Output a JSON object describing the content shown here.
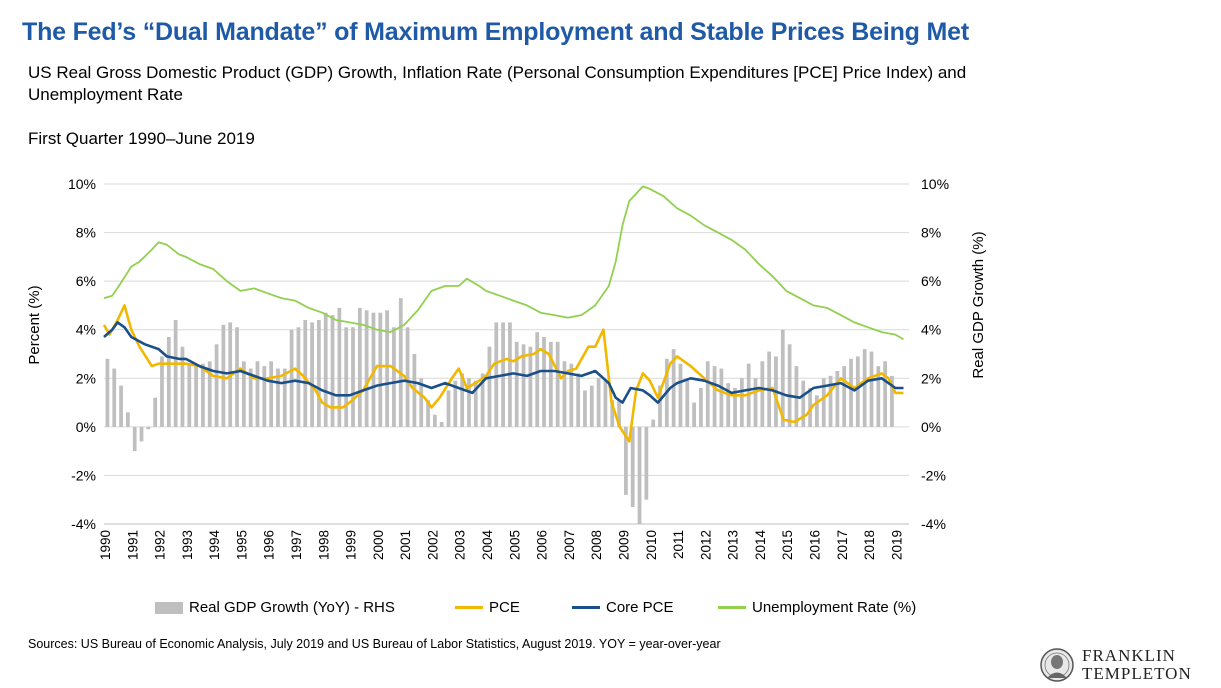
{
  "header": {
    "title": "The Fed’s “Dual Mandate” of Maximum Employment and Stable Prices Being Met",
    "subtitle": "US Real Gross Domestic Product (GDP) Growth, Inflation Rate (Personal Consumption Expenditures [PCE] Price Index) and Unemployment Rate",
    "period": "First Quarter 1990–June 2019"
  },
  "footer": {
    "source": "Sources: US Bureau of Economic Analysis, July 2019 and US Bureau of Labor Statistics, August 2019. YOY = year-over-year",
    "logo_line1": "FRANKLIN",
    "logo_line2": "TEMPLETON"
  },
  "chart_data": {
    "type": "bar",
    "ylabel": "Percent (%)",
    "ylabel_right": "Real GDP Growth (%)",
    "ylim": [
      -4,
      10
    ],
    "yticks": [
      "-4%",
      "-2%",
      "0%",
      "2%",
      "4%",
      "6%",
      "8%",
      "10%"
    ],
    "x_tick_labels": [
      "1990",
      "1991",
      "1992",
      "1993",
      "1994",
      "1995",
      "1996",
      "1997",
      "1998",
      "1999",
      "2000",
      "2001",
      "2002",
      "2003",
      "2004",
      "2005",
      "2006",
      "2007",
      "2008",
      "2009",
      "2010",
      "2011",
      "2012",
      "2013",
      "2014",
      "2015",
      "2016",
      "2017",
      "2018",
      "2019"
    ],
    "x_start": 1990.0,
    "x_end": 2019.5,
    "grid": true,
    "legend_position": "bottom",
    "colors": {
      "gdp": "#bfbfbf",
      "pce": "#f2b800",
      "core_pce": "#1b4f8a",
      "unemployment": "#92d050",
      "title": "#1f5aa6"
    },
    "series": [
      {
        "name": "Real GDP Growth (YoY) - RHS",
        "type": "bar",
        "axis": "right",
        "x_start": 1990.0,
        "step": 0.25,
        "values": [
          2.8,
          2.4,
          1.7,
          0.6,
          -1.0,
          -0.6,
          -0.1,
          1.2,
          2.9,
          3.7,
          4.4,
          3.3,
          2.6,
          2.6,
          2.6,
          2.7,
          3.4,
          4.2,
          4.3,
          4.1,
          2.7,
          2.4,
          2.7,
          2.5,
          2.7,
          2.4,
          2.4,
          4.0,
          4.1,
          4.4,
          4.3,
          4.4,
          4.7,
          4.6,
          4.9,
          4.1,
          4.1,
          4.9,
          4.8,
          4.7,
          4.7,
          4.8,
          4.1,
          5.3,
          4.1,
          3.0,
          2.0,
          1.1,
          0.5,
          0.2,
          1.5,
          1.9,
          2.2,
          2.0,
          1.9,
          2.2,
          3.3,
          4.3,
          4.3,
          4.3,
          3.5,
          3.4,
          3.3,
          3.9,
          3.7,
          3.5,
          3.5,
          2.7,
          2.6,
          2.2,
          1.5,
          1.7,
          2.0,
          1.9,
          1.1,
          1.1,
          -2.8,
          -3.3,
          -4.0,
          -3.0,
          0.3,
          1.7,
          2.8,
          3.2,
          2.6,
          1.9,
          1.0,
          1.6,
          2.7,
          2.5,
          2.4,
          1.8,
          1.6,
          2.0,
          2.6,
          2.0,
          2.7,
          3.1,
          2.9,
          4.0,
          3.4,
          2.5,
          1.9,
          1.6,
          1.3,
          2.0,
          2.1,
          2.3,
          2.5,
          2.8,
          2.9,
          3.2,
          3.1,
          2.5,
          2.7,
          2.1
        ]
      },
      {
        "name": "PCE",
        "type": "line",
        "axis": "left",
        "points": [
          [
            1990.0,
            4.2
          ],
          [
            1990.2,
            3.8
          ],
          [
            1990.5,
            4.4
          ],
          [
            1990.75,
            5.0
          ],
          [
            1991.0,
            4.0
          ],
          [
            1991.3,
            3.3
          ],
          [
            1991.75,
            2.5
          ],
          [
            1992.0,
            2.6
          ],
          [
            1992.5,
            2.6
          ],
          [
            1993.0,
            2.6
          ],
          [
            1993.5,
            2.5
          ],
          [
            1994.0,
            2.1
          ],
          [
            1994.5,
            2.0
          ],
          [
            1995.0,
            2.4
          ],
          [
            1995.5,
            2.0
          ],
          [
            1996.0,
            2.0
          ],
          [
            1996.5,
            2.1
          ],
          [
            1997.0,
            2.4
          ],
          [
            1997.3,
            2.1
          ],
          [
            1997.75,
            1.5
          ],
          [
            1998.0,
            1.0
          ],
          [
            1998.3,
            0.8
          ],
          [
            1998.75,
            0.8
          ],
          [
            1999.0,
            1.0
          ],
          [
            1999.5,
            1.5
          ],
          [
            2000.0,
            2.5
          ],
          [
            2000.5,
            2.5
          ],
          [
            2001.0,
            2.1
          ],
          [
            2001.3,
            1.6
          ],
          [
            2001.75,
            1.2
          ],
          [
            2002.0,
            0.8
          ],
          [
            2002.3,
            1.2
          ],
          [
            2002.75,
            2.0
          ],
          [
            2003.0,
            2.4
          ],
          [
            2003.3,
            1.6
          ],
          [
            2003.75,
            1.9
          ],
          [
            2004.0,
            2.1
          ],
          [
            2004.3,
            2.6
          ],
          [
            2004.75,
            2.8
          ],
          [
            2005.0,
            2.7
          ],
          [
            2005.3,
            2.9
          ],
          [
            2005.75,
            3.0
          ],
          [
            2006.0,
            3.2
          ],
          [
            2006.3,
            3.0
          ],
          [
            2006.75,
            2.0
          ],
          [
            2007.0,
            2.3
          ],
          [
            2007.3,
            2.4
          ],
          [
            2007.75,
            3.3
          ],
          [
            2008.0,
            3.3
          ],
          [
            2008.3,
            4.0
          ],
          [
            2008.6,
            1.0
          ],
          [
            2008.9,
            0.0
          ],
          [
            2009.25,
            -0.6
          ],
          [
            2009.5,
            1.5
          ],
          [
            2009.75,
            2.2
          ],
          [
            2010.0,
            1.9
          ],
          [
            2010.3,
            1.2
          ],
          [
            2010.75,
            2.6
          ],
          [
            2011.0,
            2.9
          ],
          [
            2011.5,
            2.5
          ],
          [
            2012.0,
            2.0
          ],
          [
            2012.5,
            1.5
          ],
          [
            2013.0,
            1.3
          ],
          [
            2013.5,
            1.3
          ],
          [
            2014.0,
            1.5
          ],
          [
            2014.5,
            1.6
          ],
          [
            2014.9,
            0.3
          ],
          [
            2015.3,
            0.2
          ],
          [
            2015.75,
            0.5
          ],
          [
            2016.0,
            0.9
          ],
          [
            2016.5,
            1.3
          ],
          [
            2017.0,
            2.0
          ],
          [
            2017.5,
            1.6
          ],
          [
            2018.0,
            2.0
          ],
          [
            2018.5,
            2.2
          ],
          [
            2018.75,
            2.0
          ],
          [
            2019.0,
            1.4
          ],
          [
            2019.3,
            1.4
          ]
        ]
      },
      {
        "name": "Core PCE",
        "type": "line",
        "axis": "left",
        "points": [
          [
            1990.0,
            3.7
          ],
          [
            1990.3,
            4.0
          ],
          [
            1990.5,
            4.3
          ],
          [
            1990.75,
            4.1
          ],
          [
            1991.0,
            3.7
          ],
          [
            1991.5,
            3.4
          ],
          [
            1992.0,
            3.2
          ],
          [
            1992.3,
            2.9
          ],
          [
            1992.75,
            2.8
          ],
          [
            1993.0,
            2.8
          ],
          [
            1993.5,
            2.5
          ],
          [
            1994.0,
            2.3
          ],
          [
            1994.5,
            2.2
          ],
          [
            1995.0,
            2.3
          ],
          [
            1995.5,
            2.1
          ],
          [
            1996.0,
            1.9
          ],
          [
            1996.5,
            1.8
          ],
          [
            1997.0,
            1.9
          ],
          [
            1997.5,
            1.8
          ],
          [
            1998.0,
            1.5
          ],
          [
            1998.5,
            1.3
          ],
          [
            1999.0,
            1.3
          ],
          [
            1999.5,
            1.5
          ],
          [
            2000.0,
            1.7
          ],
          [
            2000.5,
            1.8
          ],
          [
            2001.0,
            1.9
          ],
          [
            2001.5,
            1.8
          ],
          [
            2002.0,
            1.6
          ],
          [
            2002.5,
            1.8
          ],
          [
            2003.0,
            1.6
          ],
          [
            2003.5,
            1.4
          ],
          [
            2004.0,
            2.0
          ],
          [
            2004.5,
            2.1
          ],
          [
            2005.0,
            2.2
          ],
          [
            2005.5,
            2.1
          ],
          [
            2006.0,
            2.3
          ],
          [
            2006.5,
            2.3
          ],
          [
            2007.0,
            2.2
          ],
          [
            2007.5,
            2.1
          ],
          [
            2008.0,
            2.3
          ],
          [
            2008.5,
            1.8
          ],
          [
            2008.75,
            1.2
          ],
          [
            2009.0,
            1.0
          ],
          [
            2009.3,
            1.6
          ],
          [
            2009.75,
            1.5
          ],
          [
            2010.0,
            1.3
          ],
          [
            2010.3,
            1.0
          ],
          [
            2010.75,
            1.6
          ],
          [
            2011.0,
            1.8
          ],
          [
            2011.5,
            2.0
          ],
          [
            2012.0,
            1.9
          ],
          [
            2012.5,
            1.7
          ],
          [
            2013.0,
            1.4
          ],
          [
            2013.5,
            1.5
          ],
          [
            2014.0,
            1.6
          ],
          [
            2014.5,
            1.5
          ],
          [
            2015.0,
            1.3
          ],
          [
            2015.5,
            1.2
          ],
          [
            2016.0,
            1.6
          ],
          [
            2016.5,
            1.7
          ],
          [
            2017.0,
            1.8
          ],
          [
            2017.5,
            1.5
          ],
          [
            2018.0,
            1.9
          ],
          [
            2018.5,
            2.0
          ],
          [
            2019.0,
            1.6
          ],
          [
            2019.3,
            1.6
          ]
        ]
      },
      {
        "name": "Unemployment Rate (%)",
        "type": "line",
        "axis": "left",
        "points": [
          [
            1990.0,
            5.3
          ],
          [
            1990.3,
            5.4
          ],
          [
            1990.6,
            5.9
          ],
          [
            1991.0,
            6.6
          ],
          [
            1991.3,
            6.8
          ],
          [
            1991.75,
            7.3
          ],
          [
            1992.0,
            7.6
          ],
          [
            1992.3,
            7.5
          ],
          [
            1992.75,
            7.1
          ],
          [
            1993.0,
            7.0
          ],
          [
            1993.5,
            6.7
          ],
          [
            1994.0,
            6.5
          ],
          [
            1994.5,
            6.0
          ],
          [
            1995.0,
            5.6
          ],
          [
            1995.5,
            5.7
          ],
          [
            1996.0,
            5.5
          ],
          [
            1996.5,
            5.3
          ],
          [
            1997.0,
            5.2
          ],
          [
            1997.5,
            4.9
          ],
          [
            1998.0,
            4.7
          ],
          [
            1998.5,
            4.4
          ],
          [
            1999.0,
            4.3
          ],
          [
            1999.5,
            4.2
          ],
          [
            2000.0,
            4.0
          ],
          [
            2000.5,
            3.9
          ],
          [
            2001.0,
            4.2
          ],
          [
            2001.5,
            4.8
          ],
          [
            2002.0,
            5.6
          ],
          [
            2002.5,
            5.8
          ],
          [
            2003.0,
            5.8
          ],
          [
            2003.3,
            6.1
          ],
          [
            2003.75,
            5.8
          ],
          [
            2004.0,
            5.6
          ],
          [
            2004.5,
            5.4
          ],
          [
            2005.0,
            5.2
          ],
          [
            2005.5,
            5.0
          ],
          [
            2006.0,
            4.7
          ],
          [
            2006.5,
            4.6
          ],
          [
            2007.0,
            4.5
          ],
          [
            2007.5,
            4.6
          ],
          [
            2008.0,
            5.0
          ],
          [
            2008.5,
            5.8
          ],
          [
            2008.75,
            6.8
          ],
          [
            2009.0,
            8.3
          ],
          [
            2009.25,
            9.3
          ],
          [
            2009.5,
            9.6
          ],
          [
            2009.75,
            9.9
          ],
          [
            2010.0,
            9.8
          ],
          [
            2010.5,
            9.5
          ],
          [
            2011.0,
            9.0
          ],
          [
            2011.5,
            8.7
          ],
          [
            2012.0,
            8.3
          ],
          [
            2012.5,
            8.0
          ],
          [
            2013.0,
            7.7
          ],
          [
            2013.5,
            7.3
          ],
          [
            2014.0,
            6.7
          ],
          [
            2014.5,
            6.2
          ],
          [
            2015.0,
            5.6
          ],
          [
            2015.5,
            5.3
          ],
          [
            2016.0,
            5.0
          ],
          [
            2016.5,
            4.9
          ],
          [
            2017.0,
            4.6
          ],
          [
            2017.5,
            4.3
          ],
          [
            2018.0,
            4.1
          ],
          [
            2018.5,
            3.9
          ],
          [
            2019.0,
            3.8
          ],
          [
            2019.3,
            3.6
          ]
        ]
      }
    ]
  }
}
